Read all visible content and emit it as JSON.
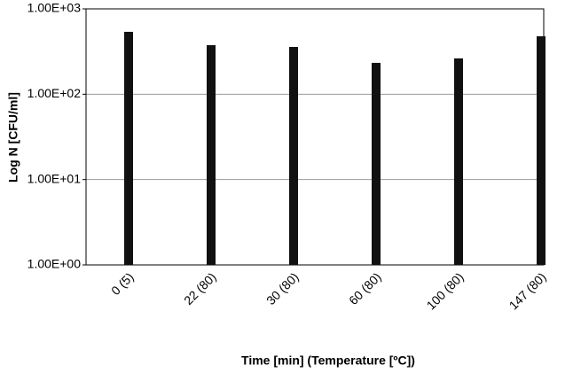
{
  "chart_data": {
    "type": "bar",
    "ylabel": "Log N  [CFU/ml]",
    "xlabel": "Time [min] (Temperature [ºC])",
    "categories": [
      "0 (5)",
      "22 (80)",
      "30 (80)",
      "60 (80)",
      "100 (80)",
      "147 (80)"
    ],
    "values": [
      538,
      376,
      358,
      233,
      263,
      478
    ],
    "color": "#111111",
    "log_scale": true,
    "grid": true,
    "ylim": [
      1,
      1000
    ],
    "yticks": [
      {
        "value": 1,
        "label": "1.00E+00"
      },
      {
        "value": 10,
        "label": "1.00E+01"
      },
      {
        "value": 100,
        "label": "1.00E+02"
      },
      {
        "value": 1000,
        "label": "1.00E+03"
      }
    ]
  }
}
